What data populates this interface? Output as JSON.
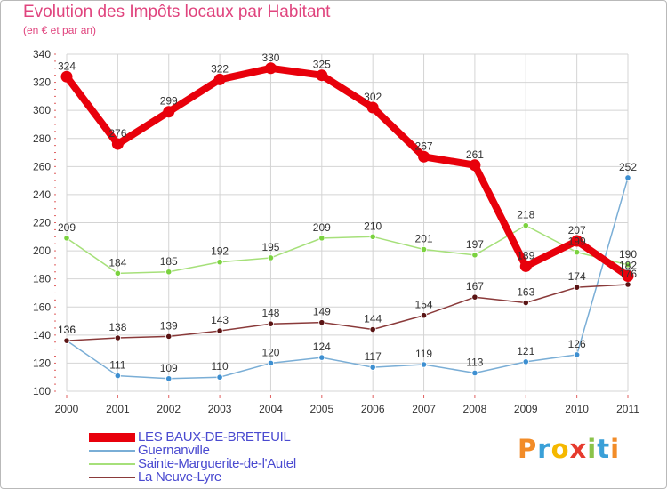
{
  "title": "Evolution des Impôts locaux par Habitant",
  "subtitle": "(en € et par an)",
  "logo": {
    "text": "Proxiti",
    "letter_colors": [
      "#f28c28",
      "#3aa0d8",
      "#f5b800",
      "#e63b2e",
      "#8bc34a",
      "#3aa0d8",
      "#f28c28"
    ]
  },
  "chart_data": {
    "type": "line",
    "title": "Evolution des Impôts locaux par Habitant",
    "subtitle": "(en € et par an)",
    "xlabel": "",
    "ylabel": "",
    "x": [
      "2000",
      "2001",
      "2002",
      "2003",
      "2004",
      "2005",
      "2006",
      "2007",
      "2008",
      "2009",
      "2010",
      "2011"
    ],
    "ylim": [
      100,
      340
    ],
    "yticks": [
      100,
      120,
      140,
      160,
      180,
      200,
      220,
      240,
      260,
      280,
      300,
      320,
      340
    ],
    "grid": true,
    "legend_position": "bottom-left",
    "series": [
      {
        "name": "LES BAUX-DE-BRETEUIL",
        "color": "#e8000b",
        "marker_color": "#e8000b",
        "emphasis": "thick",
        "values": [
          324,
          276,
          299,
          322,
          330,
          325,
          302,
          267,
          261,
          189,
          207,
          182
        ],
        "labels": [
          "324",
          "276",
          "299",
          "322",
          "330",
          "325",
          "302",
          "267",
          "261",
          "189",
          "207",
          "182"
        ]
      },
      {
        "name": "Guernanville",
        "color": "#7aaed6",
        "marker_color": "#3d8fd1",
        "emphasis": "thin",
        "values": [
          136,
          111,
          109,
          110,
          120,
          124,
          117,
          119,
          113,
          121,
          126,
          252
        ],
        "labels": [
          "136",
          "111",
          "109",
          "110",
          "120",
          "124",
          "117",
          "119",
          "113",
          "121",
          "126",
          "252"
        ]
      },
      {
        "name": "Sainte-Marguerite-de-l'Autel",
        "color": "#a6e07a",
        "marker_color": "#7bd23f",
        "emphasis": "thin",
        "values": [
          209,
          184,
          185,
          192,
          195,
          209,
          210,
          201,
          197,
          218,
          199,
          190
        ],
        "labels": [
          "209",
          "184",
          "185",
          "192",
          "195",
          "209",
          "210",
          "201",
          "197",
          "218",
          "199",
          "190"
        ]
      },
      {
        "name": "La Neuve-Lyre",
        "color": "#8a3a3a",
        "marker_color": "#5a1414",
        "emphasis": "thin",
        "values": [
          136,
          138,
          139,
          143,
          148,
          149,
          144,
          154,
          167,
          163,
          174,
          176
        ],
        "labels": [
          "136",
          "138",
          "139",
          "143",
          "148",
          "149",
          "144",
          "154",
          "167",
          "163",
          "174",
          "176"
        ]
      }
    ]
  }
}
